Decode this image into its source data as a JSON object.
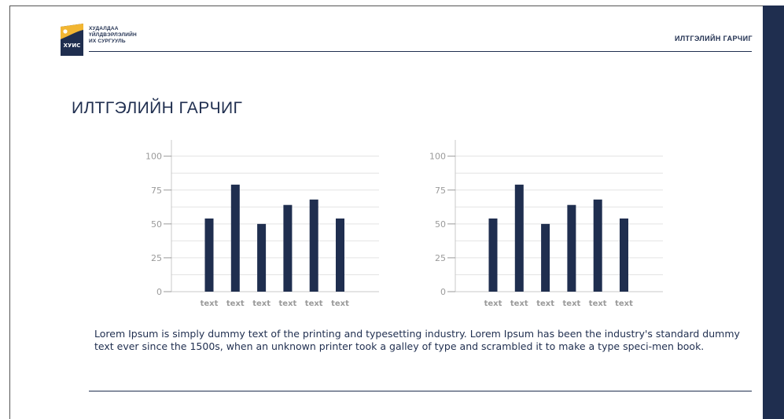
{
  "header": {
    "org_lines": [
      "ХУДАЛДАА",
      "ҮЙЛДВЭРЛЭЛИЙН",
      "ИХ СУРГУУЛЬ"
    ],
    "logo_text": "ХУИС",
    "title": "ИЛТГЭЛИЙН ГАРЧИГ"
  },
  "page_title": "ИЛТГЭЛИЙН ГАРЧИГ",
  "body_text": "Lorem Ipsum is simply dummy text of the printing and typesetting industry. Lorem Ipsum has been the industry's standard dummy text ever since the 1500s, when an unknown printer took a galley of type and scrambled it to make a type speci-men book.",
  "colors": {
    "navy": "#1f2e4f",
    "gold": "#f2b632",
    "grid": "#e3e3e3",
    "tick": "#9a9a9a"
  },
  "chart_data": [
    {
      "type": "bar",
      "categories": [
        "text",
        "text",
        "text",
        "text",
        "text",
        "text"
      ],
      "values": [
        54,
        79,
        50,
        64,
        68,
        54
      ],
      "yticks": [
        0,
        25,
        50,
        75,
        100
      ],
      "ylim": [
        0,
        112
      ],
      "grid": true
    },
    {
      "type": "bar",
      "categories": [
        "text",
        "text",
        "text",
        "text",
        "text",
        "text"
      ],
      "values": [
        54,
        79,
        50,
        64,
        68,
        54
      ],
      "yticks": [
        0,
        25,
        50,
        75,
        100
      ],
      "ylim": [
        0,
        112
      ],
      "grid": true
    }
  ]
}
